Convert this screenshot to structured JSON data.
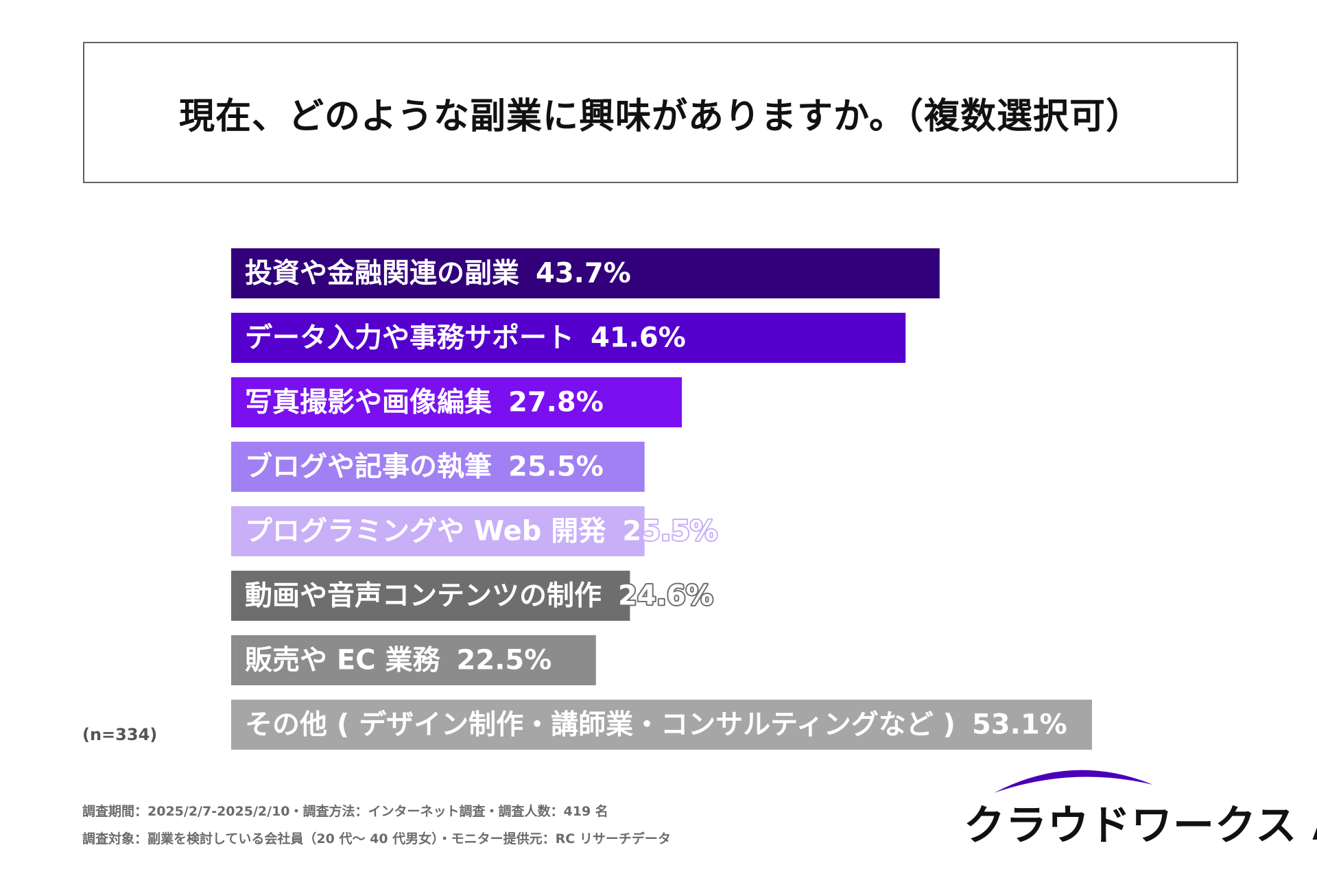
{
  "title": "現在、どのような副業に興味がありますか。（複数選択可）",
  "sample_size": "(n=334)",
  "footnotes": [
    "調査期間：2025/2/7-2025/2/10・調査方法：インターネット調査・調査人数：419 名",
    "調査対象：副業を検討している会社員（20 代～ 40 代男女）・モニター提供元：RC リサーチデータ"
  ],
  "logo": {
    "text": "クラウドワークス AI",
    "accent_color": "#4a00b8"
  },
  "chart_data": {
    "type": "bar",
    "orientation": "horizontal",
    "title": "現在、どのような副業に興味がありますか。（複数選択可）",
    "xlabel": "",
    "ylabel": "",
    "xlim": [
      0,
      53.1
    ],
    "unit": "%",
    "categories": [
      "投資や金融関連の副業",
      "データ入力や事務サポート",
      "写真撮影や画像編集",
      "ブログや記事の執筆",
      "プログラミングや Web 開発",
      "動画や音声コンテンツの制作",
      "販売や EC 業務",
      "その他 ( デザイン制作・講師業・コンサルティングなど )"
    ],
    "values": [
      43.7,
      41.6,
      27.8,
      25.5,
      25.5,
      24.6,
      22.5,
      53.1
    ],
    "value_labels": [
      "43.7%",
      "41.6%",
      "27.8%",
      "25.5%",
      "25.5%",
      "24.6%",
      "22.5%",
      "53.1%"
    ],
    "colors": [
      "#32007a",
      "#5500cc",
      "#7a10ef",
      "#a080f2",
      "#c8aff8",
      "#6e6e6e",
      "#8c8c8c",
      "#a6a6a6"
    ],
    "label_color": "#ffffff",
    "grid": false,
    "legend": "none"
  }
}
